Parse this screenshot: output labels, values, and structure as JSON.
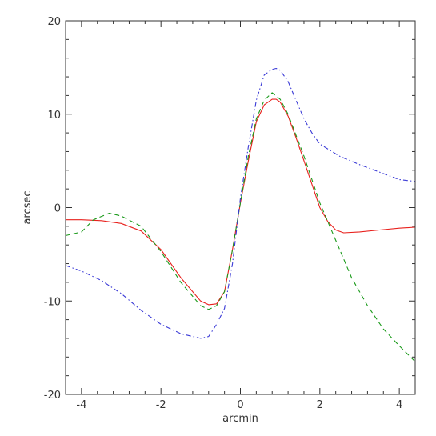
{
  "chart_data": {
    "type": "line",
    "title": "",
    "xlabel": "arcmin",
    "ylabel": "arcsec",
    "xlim": [
      -4.4,
      4.4
    ],
    "ylim": [
      -20,
      20
    ],
    "xticks": [
      -4,
      -2,
      0,
      2,
      4
    ],
    "yticks": [
      -20,
      -10,
      0,
      10,
      20
    ],
    "grid": false,
    "series": [
      {
        "color": "#e8211d",
        "dash": "solid",
        "x": [
          -4.4,
          -4.0,
          -3.5,
          -3.0,
          -2.5,
          -2.0,
          -1.5,
          -1.0,
          -0.8,
          -0.6,
          -0.4,
          -0.2,
          0.0,
          0.2,
          0.4,
          0.6,
          0.8,
          0.9,
          1.0,
          1.2,
          1.4,
          1.6,
          1.8,
          2.0,
          2.2,
          2.4,
          2.6,
          3.0,
          3.5,
          4.0,
          4.4
        ],
        "y": [
          -1.3,
          -1.3,
          -1.4,
          -1.7,
          -2.5,
          -4.5,
          -7.5,
          -10.0,
          -10.4,
          -10.3,
          -9.0,
          -4.5,
          0.5,
          5.0,
          9.2,
          11.0,
          11.6,
          11.6,
          11.3,
          9.8,
          7.5,
          5.0,
          2.5,
          0.0,
          -1.5,
          -2.4,
          -2.7,
          -2.6,
          -2.4,
          -2.2,
          -2.1
        ]
      },
      {
        "color": "#1a9a1a",
        "dash": "dashed",
        "x": [
          -4.4,
          -4.0,
          -3.7,
          -3.3,
          -3.0,
          -2.5,
          -2.0,
          -1.5,
          -1.0,
          -0.8,
          -0.6,
          -0.4,
          -0.2,
          0.0,
          0.2,
          0.4,
          0.6,
          0.8,
          1.0,
          1.2,
          1.6,
          2.0,
          2.4,
          2.8,
          3.2,
          3.6,
          4.0,
          4.4
        ],
        "y": [
          -3.0,
          -2.6,
          -1.3,
          -0.6,
          -0.9,
          -2.0,
          -4.7,
          -8.0,
          -10.5,
          -10.9,
          -10.5,
          -9.0,
          -4.5,
          0.5,
          5.5,
          9.5,
          11.5,
          12.3,
          11.6,
          10.0,
          5.5,
          0.5,
          -3.5,
          -7.5,
          -10.5,
          -13.0,
          -14.8,
          -16.5
        ]
      },
      {
        "color": "#3a3ad6",
        "dash": "dashdot",
        "x": [
          -4.4,
          -4.0,
          -3.5,
          -3.0,
          -2.5,
          -2.0,
          -1.5,
          -1.0,
          -0.8,
          -0.6,
          -0.4,
          -0.2,
          0.0,
          0.2,
          0.4,
          0.6,
          0.8,
          0.9,
          1.0,
          1.2,
          1.4,
          1.6,
          1.8,
          2.0,
          2.5,
          3.0,
          3.5,
          4.0,
          4.4
        ],
        "y": [
          -6.2,
          -6.8,
          -7.8,
          -9.2,
          -11.0,
          -12.5,
          -13.5,
          -14.0,
          -13.8,
          -12.5,
          -10.8,
          -6.0,
          1.0,
          6.5,
          11.5,
          14.2,
          14.8,
          14.9,
          14.7,
          13.5,
          11.5,
          9.5,
          8.0,
          6.8,
          5.5,
          4.6,
          3.8,
          3.0,
          2.8
        ]
      }
    ]
  }
}
